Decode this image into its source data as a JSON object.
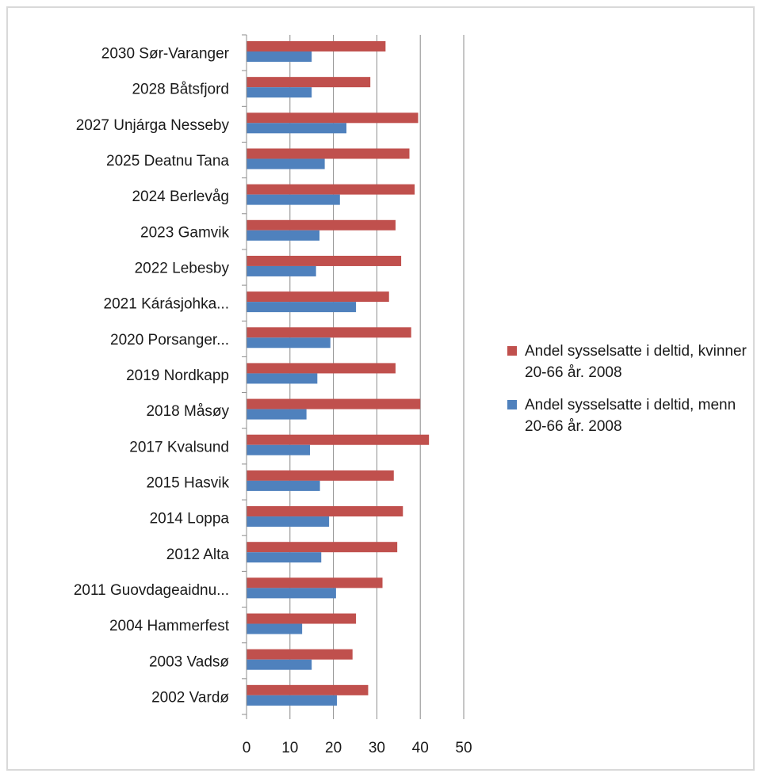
{
  "chart_data": {
    "type": "bar",
    "orientation": "horizontal",
    "title": "",
    "xlabel": "",
    "ylabel": "",
    "xlim": [
      0,
      50
    ],
    "xticks": [
      0,
      10,
      20,
      30,
      40,
      50
    ],
    "grid": true,
    "legend_position": "right",
    "categories": [
      "2030 Sør-Varanger",
      "2028 Båtsfjord",
      "2027 Unjárga Nesseby",
      "2025 Deatnu Tana",
      "2024 Berlevåg",
      "2023 Gamvik",
      "2022 Lebesby",
      "2021 Kárásjohka...",
      "2020 Porsanger...",
      "2019 Nordkapp",
      "2018 Måsøy",
      "2017 Kvalsund",
      "2015 Hasvik",
      "2014 Loppa",
      "2012 Alta",
      "2011 Guovdageaidnu...",
      "2004 Hammerfest",
      "2003 Vadsø",
      "2002 Vardø"
    ],
    "series": [
      {
        "name": "Andel sysselsatte i deltid, kvinner 20-66 år. 2008",
        "color": "#c0504d",
        "values": [
          32,
          28.5,
          39.5,
          37.5,
          38.7,
          34.3,
          35.6,
          32.8,
          37.9,
          34.3,
          40,
          42,
          33.9,
          36,
          34.7,
          31.3,
          25.2,
          24.4,
          28
        ]
      },
      {
        "name": "Andel sysselsatte i deltid, menn 20-66 år. 2008",
        "color": "#4f81bd",
        "values": [
          15,
          15,
          23,
          18,
          21.5,
          16.8,
          16,
          25.2,
          19.3,
          16.3,
          13.8,
          14.6,
          16.9,
          19,
          17.2,
          20.6,
          12.8,
          15,
          20.8
        ]
      }
    ]
  }
}
